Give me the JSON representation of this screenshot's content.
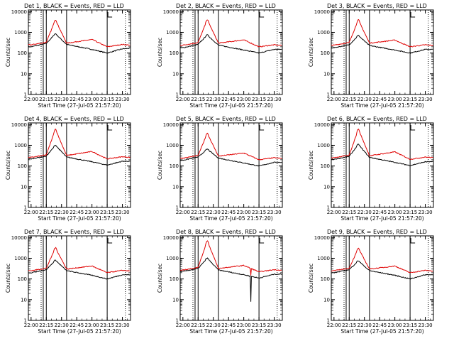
{
  "colors": {
    "events": "#000000",
    "lld": "#e00000",
    "axis": "#000000",
    "background": "#ffffff"
  },
  "x_tick_labels": [
    "22:00",
    "22:15",
    "22:30",
    "22:45",
    "23:00",
    "23:15",
    "23:30"
  ],
  "y_tick_labels": [
    "1",
    "10",
    "100",
    "1000",
    "10000"
  ],
  "ylabel": "Counts/sec",
  "xlabel": "Start Time (27-Jul-05 21:57:20)",
  "chart_data": [
    {
      "type": "line",
      "title": "Det 1, BLACK = Events, RED = LLD",
      "ylim": [
        1,
        12000
      ],
      "x_range": [
        "22:00",
        "23:38"
      ],
      "y_scale": "log",
      "vertical_lines": [
        "22:12",
        "22:15",
        "22:35",
        "23:15"
      ],
      "dotted_lines": [
        "22:12",
        "23:35"
      ],
      "peak_time": "22:24",
      "series": [
        {
          "values_at": [
            "22:00",
            "22:15",
            "22:24",
            "22:35",
            "23:00",
            "23:15",
            "23:30",
            "23:38"
          ],
          "events": [
            200,
            290,
            850,
            260,
            150,
            100,
            160,
            170
          ],
          "lld": [
            250,
            330,
            4000,
            300,
            450,
            200,
            260,
            240
          ]
        }
      ]
    },
    {
      "type": "line",
      "title": "Det 2, BLACK = Events, RED = LLD",
      "ylim": [
        1,
        12000
      ],
      "x_range": [
        "22:00",
        "23:38"
      ],
      "y_scale": "log",
      "vertical_lines": [
        "22:12",
        "22:15",
        "22:35",
        "23:15"
      ],
      "dotted_lines": [
        "22:12",
        "23:35"
      ],
      "peak_time": "22:24",
      "series": [
        {
          "values_at": [
            "22:00",
            "22:15",
            "22:24",
            "22:35",
            "23:00",
            "23:15",
            "23:30",
            "23:38"
          ],
          "events": [
            180,
            260,
            750,
            240,
            140,
            100,
            150,
            150
          ],
          "lld": [
            240,
            320,
            4100,
            300,
            430,
            200,
            250,
            230
          ]
        }
      ]
    },
    {
      "type": "line",
      "title": "Det 3, BLACK = Events, RED = LLD",
      "ylim": [
        1,
        12000
      ],
      "x_range": [
        "22:00",
        "23:38"
      ],
      "y_scale": "log",
      "vertical_lines": [
        "22:12",
        "22:15",
        "22:35",
        "23:15"
      ],
      "dotted_lines": [
        "22:12",
        "23:35"
      ],
      "peak_time": "22:24",
      "series": [
        {
          "values_at": [
            "22:00",
            "22:15",
            "22:24",
            "22:35",
            "23:00",
            "23:15",
            "23:30",
            "23:38"
          ],
          "events": [
            180,
            250,
            700,
            230,
            140,
            100,
            150,
            150
          ],
          "lld": [
            240,
            320,
            4000,
            300,
            420,
            200,
            250,
            230
          ]
        }
      ]
    },
    {
      "type": "line",
      "title": "Det 4, BLACK = Events, RED = LLD",
      "ylim": [
        1,
        12000
      ],
      "x_range": [
        "22:00",
        "23:38"
      ],
      "y_scale": "log",
      "vertical_lines": [
        "22:12",
        "22:15",
        "22:35",
        "23:15"
      ],
      "dotted_lines": [
        "22:12",
        "23:35"
      ],
      "peak_time": "22:24",
      "series": [
        {
          "values_at": [
            "22:00",
            "22:15",
            "22:24",
            "22:35",
            "23:00",
            "23:15",
            "23:30",
            "23:38"
          ],
          "events": [
            220,
            300,
            1000,
            270,
            160,
            110,
            170,
            170
          ],
          "lld": [
            260,
            340,
            6000,
            320,
            500,
            220,
            280,
            260
          ]
        }
      ]
    },
    {
      "type": "line",
      "title": "Det 5, BLACK = Events, RED = LLD",
      "ylim": [
        1,
        12000
      ],
      "x_range": [
        "22:00",
        "23:38"
      ],
      "y_scale": "log",
      "vertical_lines": [
        "22:12",
        "22:15",
        "22:35",
        "23:15"
      ],
      "dotted_lines": [
        "22:12",
        "23:35"
      ],
      "peak_time": "22:24",
      "series": [
        {
          "values_at": [
            "22:00",
            "22:15",
            "22:24",
            "22:35",
            "23:00",
            "23:15",
            "23:30",
            "23:38"
          ],
          "events": [
            190,
            270,
            650,
            240,
            140,
            100,
            150,
            150
          ],
          "lld": [
            240,
            320,
            3800,
            300,
            420,
            200,
            250,
            230
          ]
        }
      ]
    },
    {
      "type": "line",
      "title": "Det 6, BLACK = Events, RED = LLD",
      "ylim": [
        1,
        12000
      ],
      "x_range": [
        "22:00",
        "23:38"
      ],
      "y_scale": "log",
      "vertical_lines": [
        "22:12",
        "22:15",
        "22:35",
        "23:15"
      ],
      "dotted_lines": [
        "22:12",
        "23:35"
      ],
      "peak_time": "22:24",
      "series": [
        {
          "values_at": [
            "22:00",
            "22:15",
            "22:24",
            "22:35",
            "23:00",
            "23:15",
            "23:30",
            "23:38"
          ],
          "events": [
            210,
            290,
            1100,
            260,
            150,
            105,
            160,
            160
          ],
          "lld": [
            250,
            330,
            6000,
            310,
            480,
            210,
            270,
            250
          ]
        }
      ]
    },
    {
      "type": "line",
      "title": "Det 7, BLACK = Events, RED = LLD",
      "ylim": [
        1,
        12000
      ],
      "x_range": [
        "22:00",
        "23:38"
      ],
      "y_scale": "log",
      "vertical_lines": [
        "22:12",
        "22:15",
        "22:35",
        "23:15"
      ],
      "dotted_lines": [
        "22:12",
        "23:35"
      ],
      "peak_time": "22:24",
      "series": [
        {
          "values_at": [
            "22:00",
            "22:15",
            "22:24",
            "22:35",
            "23:00",
            "23:15",
            "23:30",
            "23:38"
          ],
          "events": [
            200,
            280,
            800,
            250,
            150,
            100,
            160,
            160
          ],
          "lld": [
            250,
            330,
            3200,
            300,
            420,
            200,
            260,
            240
          ]
        }
      ]
    },
    {
      "type": "line",
      "title": "Det 8, BLACK = Events, RED = LLD",
      "ylim": [
        1,
        12000
      ],
      "x_range": [
        "22:00",
        "23:38"
      ],
      "y_scale": "log",
      "vertical_lines": [
        "22:12",
        "22:15",
        "22:35",
        "23:15"
      ],
      "dotted_lines": [
        "22:12",
        "23:35"
      ],
      "peak_time": "22:24",
      "dropout": {
        "time": "23:07",
        "events": 8,
        "lld": 150
      },
      "series": [
        {
          "values_at": [
            "22:00",
            "22:15",
            "22:24",
            "22:35",
            "23:00",
            "23:15",
            "23:30",
            "23:38"
          ],
          "events": [
            230,
            320,
            1000,
            270,
            160,
            110,
            170,
            170
          ],
          "lld": [
            270,
            360,
            7000,
            320,
            450,
            220,
            280,
            260
          ]
        }
      ]
    },
    {
      "type": "line",
      "title": "Det 9, BLACK = Events, RED = LLD",
      "ylim": [
        1,
        12000
      ],
      "x_range": [
        "22:00",
        "23:38"
      ],
      "y_scale": "log",
      "vertical_lines": [
        "22:12",
        "22:15",
        "22:35",
        "23:15"
      ],
      "dotted_lines": [
        "22:12",
        "23:35"
      ],
      "peak_time": "22:24",
      "series": [
        {
          "values_at": [
            "22:00",
            "22:15",
            "22:24",
            "22:35",
            "23:00",
            "23:15",
            "23:30",
            "23:38"
          ],
          "events": [
            200,
            280,
            750,
            250,
            150,
            100,
            160,
            160
          ],
          "lld": [
            250,
            330,
            3000,
            300,
            420,
            200,
            260,
            240
          ]
        }
      ]
    }
  ]
}
